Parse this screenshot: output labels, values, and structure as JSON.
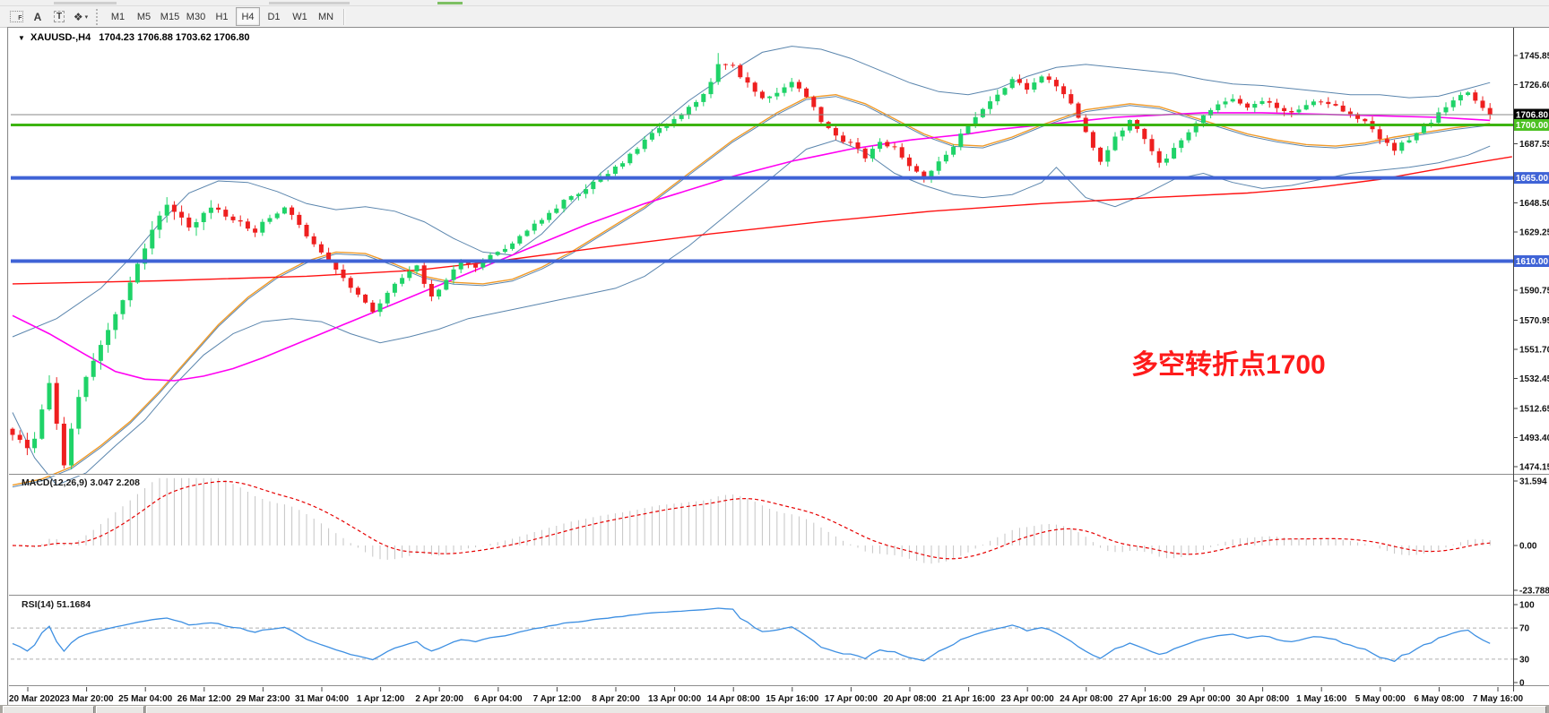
{
  "top_toolbar": {
    "icons": [
      {
        "name": "template-f-icon",
        "glyph": "F"
      },
      {
        "name": "text-label-icon",
        "glyph": "A"
      },
      {
        "name": "text-box-icon",
        "glyph": "T"
      },
      {
        "name": "shapes-arrows-icon",
        "glyph": "❖"
      }
    ],
    "dropdown_caret": "▾",
    "timeframes": [
      "M1",
      "M5",
      "M15",
      "M30",
      "H1",
      "H4",
      "D1",
      "W1",
      "MN"
    ],
    "active_timeframe": "H4"
  },
  "chart": {
    "title_caret": "▼",
    "symbol_title": "XAUUSD-,H4",
    "ohlc_values": "1704.23 1706.88 1703.62 1706.80"
  },
  "indicators": {
    "macd_label": "MACD(12,26,9) 3.047 2.208",
    "rsi_label": "RSI(14) 51.1684"
  },
  "annotation": {
    "text": "多空转折点1700",
    "color": "#fe1b1b"
  },
  "colors": {
    "bull": "#1fd368",
    "bear": "#ee1f1f",
    "bb": "#5a85ad",
    "mid": "#f09a28",
    "magenta": "#ff00f2",
    "red_ma": "#ff1212",
    "hline_green": "#3db411",
    "hline_blue": "#3f63d6",
    "cur_price": "#8a8a8a",
    "macd_hist": "#c4c4c4",
    "macd_signal": "#e60000",
    "rsi": "#3d8fe2",
    "level_dash": "#b0b0b0",
    "axis_text": "#111111",
    "badge_black": "#000000",
    "badge_green": "#4cc122",
    "badge_blue": "#3f63d6"
  },
  "price_axis": {
    "ticks": [
      1745.85,
      1726.6,
      1687.55,
      1648.5,
      1629.25,
      1590.75,
      1570.95,
      1551.7,
      1532.45,
      1512.65,
      1493.4,
      1474.15
    ],
    "badges": [
      {
        "label": "1706.80",
        "price": 1706.8,
        "bg": "badge_black"
      },
      {
        "label": "1700.00",
        "price": 1700.0,
        "bg": "badge_green"
      },
      {
        "label": "1665.00",
        "price": 1665.0,
        "bg": "badge_blue"
      },
      {
        "label": "1610.00",
        "price": 1610.0,
        "bg": "badge_blue"
      }
    ]
  },
  "chart_data": {
    "type": "candlestick",
    "symbol": "XAUUSD-",
    "timeframe": "H4",
    "title": "XAUUSD-,H4 1704.23 1706.88 1703.62 1706.80",
    "last_ohlc": {
      "open": 1704.23,
      "high": 1706.88,
      "low": 1703.62,
      "close": 1706.8
    },
    "last_price": 1706.8,
    "y_ticks": [
      1745.85,
      1726.6,
      1687.55,
      1648.5,
      1629.25,
      1590.75,
      1570.95,
      1551.7,
      1532.45,
      1512.65,
      1493.4,
      1474.15
    ],
    "y_range": [
      1470,
      1763
    ],
    "grid": false,
    "bars_total": 202,
    "x_labels": [
      "20 Mar 2020",
      "23 Mar 20:00",
      "25 Mar 04:00",
      "26 Mar 12:00",
      "29 Mar 23:00",
      "31 Mar 04:00",
      "1 Apr 12:00",
      "2 Apr 20:00",
      "6 Apr 04:00",
      "7 Apr 12:00",
      "8 Apr 20:00",
      "13 Apr 00:00",
      "14 Apr 08:00",
      "15 Apr 16:00",
      "17 Apr 00:00",
      "20 Apr 08:00",
      "21 Apr 16:00",
      "23 Apr 00:00",
      "24 Apr 08:00",
      "27 Apr 16:00",
      "29 Apr 00:00",
      "30 Apr 08:00",
      "1 May 16:00",
      "5 May 00:00",
      "6 May 08:00",
      "7 May 16:00"
    ],
    "hlines": [
      {
        "price": 1706.8,
        "color": "cur_price",
        "width": 1
      },
      {
        "price": 1700.0,
        "color": "hline_green",
        "width": 3
      },
      {
        "price": 1665.0,
        "color": "hline_blue",
        "width": 4
      },
      {
        "price": 1610.0,
        "color": "hline_blue",
        "width": 4
      }
    ],
    "close_waypoints": [
      [
        0,
        1496
      ],
      [
        2,
        1486
      ],
      [
        3,
        1493
      ],
      [
        5,
        1528
      ],
      [
        7,
        1476
      ],
      [
        9,
        1520
      ],
      [
        11,
        1545
      ],
      [
        13,
        1565
      ],
      [
        15,
        1585
      ],
      [
        17,
        1608
      ],
      [
        19,
        1630
      ],
      [
        21,
        1648
      ],
      [
        24,
        1632
      ],
      [
        27,
        1646
      ],
      [
        30,
        1638
      ],
      [
        33,
        1630
      ],
      [
        35,
        1639
      ],
      [
        37,
        1646
      ],
      [
        39,
        1634
      ],
      [
        41,
        1620
      ],
      [
        44,
        1604
      ],
      [
        47,
        1588
      ],
      [
        49,
        1576
      ],
      [
        51,
        1590
      ],
      [
        53,
        1599
      ],
      [
        55,
        1606
      ],
      [
        57,
        1586
      ],
      [
        59,
        1598
      ],
      [
        61,
        1609
      ],
      [
        63,
        1606
      ],
      [
        65,
        1613
      ],
      [
        67,
        1619
      ],
      [
        69,
        1626
      ],
      [
        71,
        1635
      ],
      [
        74,
        1646
      ],
      [
        77,
        1655
      ],
      [
        80,
        1665
      ],
      [
        83,
        1676
      ],
      [
        86,
        1690
      ],
      [
        89,
        1700
      ],
      [
        91,
        1706
      ],
      [
        93,
        1715
      ],
      [
        95,
        1728
      ],
      [
        96,
        1740
      ],
      [
        98,
        1738
      ],
      [
        100,
        1727
      ],
      [
        102,
        1717
      ],
      [
        104,
        1722
      ],
      [
        106,
        1728
      ],
      [
        108,
        1719
      ],
      [
        110,
        1703
      ],
      [
        112,
        1693
      ],
      [
        114,
        1687
      ],
      [
        116,
        1679
      ],
      [
        118,
        1689
      ],
      [
        120,
        1684
      ],
      [
        122,
        1673
      ],
      [
        124,
        1664
      ],
      [
        126,
        1675
      ],
      [
        128,
        1687
      ],
      [
        130,
        1699
      ],
      [
        132,
        1711
      ],
      [
        134,
        1721
      ],
      [
        136,
        1730
      ],
      [
        138,
        1724
      ],
      [
        140,
        1732
      ],
      [
        142,
        1726
      ],
      [
        144,
        1714
      ],
      [
        146,
        1694
      ],
      [
        148,
        1676
      ],
      [
        150,
        1692
      ],
      [
        152,
        1703
      ],
      [
        154,
        1690
      ],
      [
        156,
        1674
      ],
      [
        158,
        1684
      ],
      [
        160,
        1696
      ],
      [
        162,
        1706
      ],
      [
        164,
        1713
      ],
      [
        166,
        1717
      ],
      [
        168,
        1711
      ],
      [
        170,
        1715
      ],
      [
        172,
        1712
      ],
      [
        174,
        1708
      ],
      [
        176,
        1712
      ],
      [
        178,
        1716
      ],
      [
        180,
        1712
      ],
      [
        182,
        1708
      ],
      [
        184,
        1702
      ],
      [
        186,
        1692
      ],
      [
        188,
        1684
      ],
      [
        190,
        1690
      ],
      [
        192,
        1698
      ],
      [
        194,
        1707
      ],
      [
        196,
        1715
      ],
      [
        198,
        1722
      ],
      [
        199,
        1716
      ],
      [
        200,
        1710
      ],
      [
        201,
        1707
      ]
    ],
    "bb_middle_waypoints": [
      [
        0,
        1462
      ],
      [
        4,
        1466
      ],
      [
        8,
        1474
      ],
      [
        12,
        1488
      ],
      [
        16,
        1504
      ],
      [
        20,
        1524
      ],
      [
        24,
        1546
      ],
      [
        28,
        1568
      ],
      [
        32,
        1586
      ],
      [
        36,
        1600
      ],
      [
        40,
        1610
      ],
      [
        44,
        1616
      ],
      [
        48,
        1615
      ],
      [
        52,
        1608
      ],
      [
        56,
        1600
      ],
      [
        60,
        1596
      ],
      [
        64,
        1595
      ],
      [
        68,
        1598
      ],
      [
        72,
        1606
      ],
      [
        76,
        1616
      ],
      [
        80,
        1628
      ],
      [
        86,
        1646
      ],
      [
        92,
        1668
      ],
      [
        98,
        1690
      ],
      [
        104,
        1708
      ],
      [
        108,
        1718
      ],
      [
        112,
        1720
      ],
      [
        116,
        1714
      ],
      [
        120,
        1704
      ],
      [
        124,
        1694
      ],
      [
        128,
        1687
      ],
      [
        132,
        1686
      ],
      [
        136,
        1692
      ],
      [
        140,
        1700
      ],
      [
        146,
        1710
      ],
      [
        152,
        1714
      ],
      [
        156,
        1712
      ],
      [
        160,
        1706
      ],
      [
        164,
        1700
      ],
      [
        168,
        1694
      ],
      [
        172,
        1690
      ],
      [
        176,
        1687
      ],
      [
        180,
        1686
      ],
      [
        184,
        1688
      ],
      [
        188,
        1692
      ],
      [
        192,
        1695
      ],
      [
        196,
        1698
      ],
      [
        201,
        1701
      ]
    ],
    "bb_upper_waypoints": [
      [
        0,
        1560
      ],
      [
        6,
        1572
      ],
      [
        12,
        1592
      ],
      [
        16,
        1612
      ],
      [
        20,
        1635
      ],
      [
        24,
        1655
      ],
      [
        28,
        1663
      ],
      [
        32,
        1662
      ],
      [
        36,
        1656
      ],
      [
        40,
        1648
      ],
      [
        44,
        1644
      ],
      [
        48,
        1646
      ],
      [
        52,
        1643
      ],
      [
        56,
        1636
      ],
      [
        60,
        1625
      ],
      [
        64,
        1616
      ],
      [
        68,
        1614
      ],
      [
        72,
        1628
      ],
      [
        76,
        1648
      ],
      [
        80,
        1668
      ],
      [
        86,
        1692
      ],
      [
        92,
        1716
      ],
      [
        98,
        1736
      ],
      [
        102,
        1748
      ],
      [
        106,
        1752
      ],
      [
        110,
        1750
      ],
      [
        114,
        1744
      ],
      [
        118,
        1736
      ],
      [
        122,
        1728
      ],
      [
        126,
        1722
      ],
      [
        130,
        1720
      ],
      [
        134,
        1724
      ],
      [
        138,
        1732
      ],
      [
        142,
        1738
      ],
      [
        146,
        1740
      ],
      [
        150,
        1738
      ],
      [
        154,
        1736
      ],
      [
        158,
        1734
      ],
      [
        162,
        1730
      ],
      [
        166,
        1727
      ],
      [
        170,
        1726
      ],
      [
        174,
        1724
      ],
      [
        178,
        1722
      ],
      [
        182,
        1720
      ],
      [
        186,
        1720
      ],
      [
        190,
        1718
      ],
      [
        194,
        1719
      ],
      [
        198,
        1724
      ],
      [
        201,
        1728
      ]
    ],
    "bb_lower_waypoints": [
      [
        0,
        1510
      ],
      [
        3,
        1480
      ],
      [
        6,
        1462
      ],
      [
        10,
        1470
      ],
      [
        14,
        1488
      ],
      [
        18,
        1505
      ],
      [
        22,
        1528
      ],
      [
        26,
        1548
      ],
      [
        30,
        1562
      ],
      [
        34,
        1570
      ],
      [
        38,
        1572
      ],
      [
        42,
        1570
      ],
      [
        46,
        1562
      ],
      [
        50,
        1556
      ],
      [
        54,
        1560
      ],
      [
        58,
        1565
      ],
      [
        62,
        1572
      ],
      [
        66,
        1576
      ],
      [
        70,
        1580
      ],
      [
        74,
        1584
      ],
      [
        78,
        1588
      ],
      [
        82,
        1592
      ],
      [
        86,
        1600
      ],
      [
        92,
        1620
      ],
      [
        98,
        1644
      ],
      [
        104,
        1668
      ],
      [
        108,
        1684
      ],
      [
        112,
        1690
      ],
      [
        116,
        1682
      ],
      [
        120,
        1668
      ],
      [
        124,
        1660
      ],
      [
        128,
        1654
      ],
      [
        132,
        1652
      ],
      [
        136,
        1654
      ],
      [
        140,
        1662
      ],
      [
        142,
        1672
      ],
      [
        146,
        1652
      ],
      [
        150,
        1646
      ],
      [
        154,
        1654
      ],
      [
        158,
        1664
      ],
      [
        162,
        1668
      ],
      [
        166,
        1662
      ],
      [
        170,
        1658
      ],
      [
        174,
        1660
      ],
      [
        178,
        1664
      ],
      [
        182,
        1668
      ],
      [
        186,
        1670
      ],
      [
        190,
        1672
      ],
      [
        194,
        1675
      ],
      [
        198,
        1680
      ],
      [
        201,
        1686
      ]
    ],
    "ma_magenta_waypoints": [
      [
        0,
        1574
      ],
      [
        5,
        1562
      ],
      [
        10,
        1548
      ],
      [
        14,
        1537
      ],
      [
        18,
        1532
      ],
      [
        22,
        1531
      ],
      [
        26,
        1534
      ],
      [
        30,
        1539
      ],
      [
        34,
        1546
      ],
      [
        38,
        1554
      ],
      [
        42,
        1562
      ],
      [
        46,
        1570
      ],
      [
        50,
        1578
      ],
      [
        54,
        1586
      ],
      [
        58,
        1594
      ],
      [
        62,
        1602
      ],
      [
        66,
        1610
      ],
      [
        70,
        1618
      ],
      [
        74,
        1626
      ],
      [
        78,
        1634
      ],
      [
        82,
        1641
      ],
      [
        86,
        1648
      ],
      [
        90,
        1654
      ],
      [
        94,
        1660
      ],
      [
        98,
        1666
      ],
      [
        102,
        1671
      ],
      [
        106,
        1676
      ],
      [
        110,
        1680
      ],
      [
        114,
        1684
      ],
      [
        118,
        1687
      ],
      [
        122,
        1690
      ],
      [
        126,
        1692
      ],
      [
        130,
        1694
      ],
      [
        134,
        1697
      ],
      [
        138,
        1699
      ],
      [
        142,
        1701
      ],
      [
        146,
        1703
      ],
      [
        150,
        1705
      ],
      [
        154,
        1706
      ],
      [
        158,
        1707
      ],
      [
        162,
        1708
      ],
      [
        170,
        1708
      ],
      [
        178,
        1707
      ],
      [
        186,
        1706
      ],
      [
        194,
        1705
      ],
      [
        201,
        1703
      ]
    ],
    "ma_red_waypoints": [
      [
        0,
        1595
      ],
      [
        20,
        1597
      ],
      [
        40,
        1600
      ],
      [
        55,
        1604
      ],
      [
        66,
        1610
      ],
      [
        80,
        1619
      ],
      [
        95,
        1628
      ],
      [
        110,
        1636
      ],
      [
        125,
        1643
      ],
      [
        140,
        1648
      ],
      [
        155,
        1652
      ],
      [
        168,
        1655
      ],
      [
        178,
        1659
      ],
      [
        186,
        1664
      ],
      [
        193,
        1670
      ],
      [
        199,
        1675
      ],
      [
        204,
        1679
      ]
    ],
    "macd": {
      "params": [
        12,
        26,
        9
      ],
      "current_macd": 3.047,
      "current_signal": 2.208,
      "y_ticks": [
        {
          "value": 31.594,
          "label": "31.594"
        },
        {
          "value": 0,
          "label": "0.00"
        },
        {
          "value": -23.788,
          "label": "-23.788"
        }
      ],
      "y_range": [
        -26,
        34
      ]
    },
    "rsi": {
      "period": 14,
      "current": 51.1684,
      "levels": [
        70,
        30
      ],
      "y_ticks": [
        {
          "value": 100,
          "label": "100"
        },
        {
          "value": 70,
          "label": "70"
        },
        {
          "value": 30,
          "label": "30"
        },
        {
          "value": 0,
          "label": "0"
        }
      ]
    }
  }
}
